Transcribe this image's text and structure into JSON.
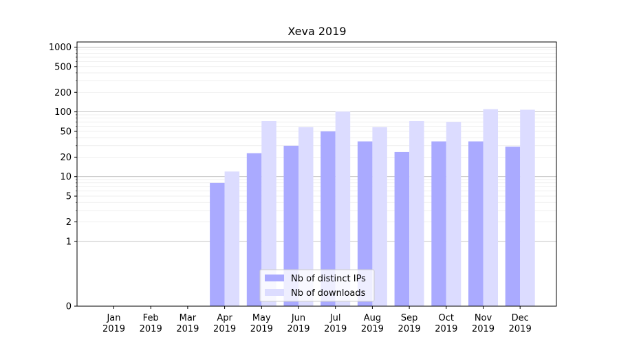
{
  "chart_data": {
    "type": "bar",
    "title": "Xeva 2019",
    "scale": "symlog",
    "categories": [
      {
        "month": "Jan",
        "year": "2019"
      },
      {
        "month": "Feb",
        "year": "2019"
      },
      {
        "month": "Mar",
        "year": "2019"
      },
      {
        "month": "Apr",
        "year": "2019"
      },
      {
        "month": "May",
        "year": "2019"
      },
      {
        "month": "Jun",
        "year": "2019"
      },
      {
        "month": "Jul",
        "year": "2019"
      },
      {
        "month": "Aug",
        "year": "2019"
      },
      {
        "month": "Sep",
        "year": "2019"
      },
      {
        "month": "Oct",
        "year": "2019"
      },
      {
        "month": "Nov",
        "year": "2019"
      },
      {
        "month": "Dec",
        "year": "2019"
      }
    ],
    "series": [
      {
        "name": "Nb of distinct IPs",
        "color": "#aaaaff",
        "values": [
          0,
          0,
          0,
          8,
          23,
          30,
          50,
          35,
          24,
          35,
          35,
          29
        ]
      },
      {
        "name": "Nb of downloads",
        "color": "#dcdcff",
        "values": [
          0,
          0,
          0,
          12,
          72,
          58,
          101,
          58,
          72,
          70,
          110,
          108
        ]
      }
    ],
    "yticks": [
      "0",
      "1",
      "2",
      "5",
      "10",
      "20",
      "50",
      "100",
      "200",
      "500",
      "1000"
    ],
    "ytick_values": [
      0,
      1,
      2,
      5,
      10,
      20,
      50,
      100,
      200,
      500,
      1000
    ],
    "ylim": [
      0,
      1200
    ],
    "grid": true,
    "legend_position": "lower center"
  }
}
